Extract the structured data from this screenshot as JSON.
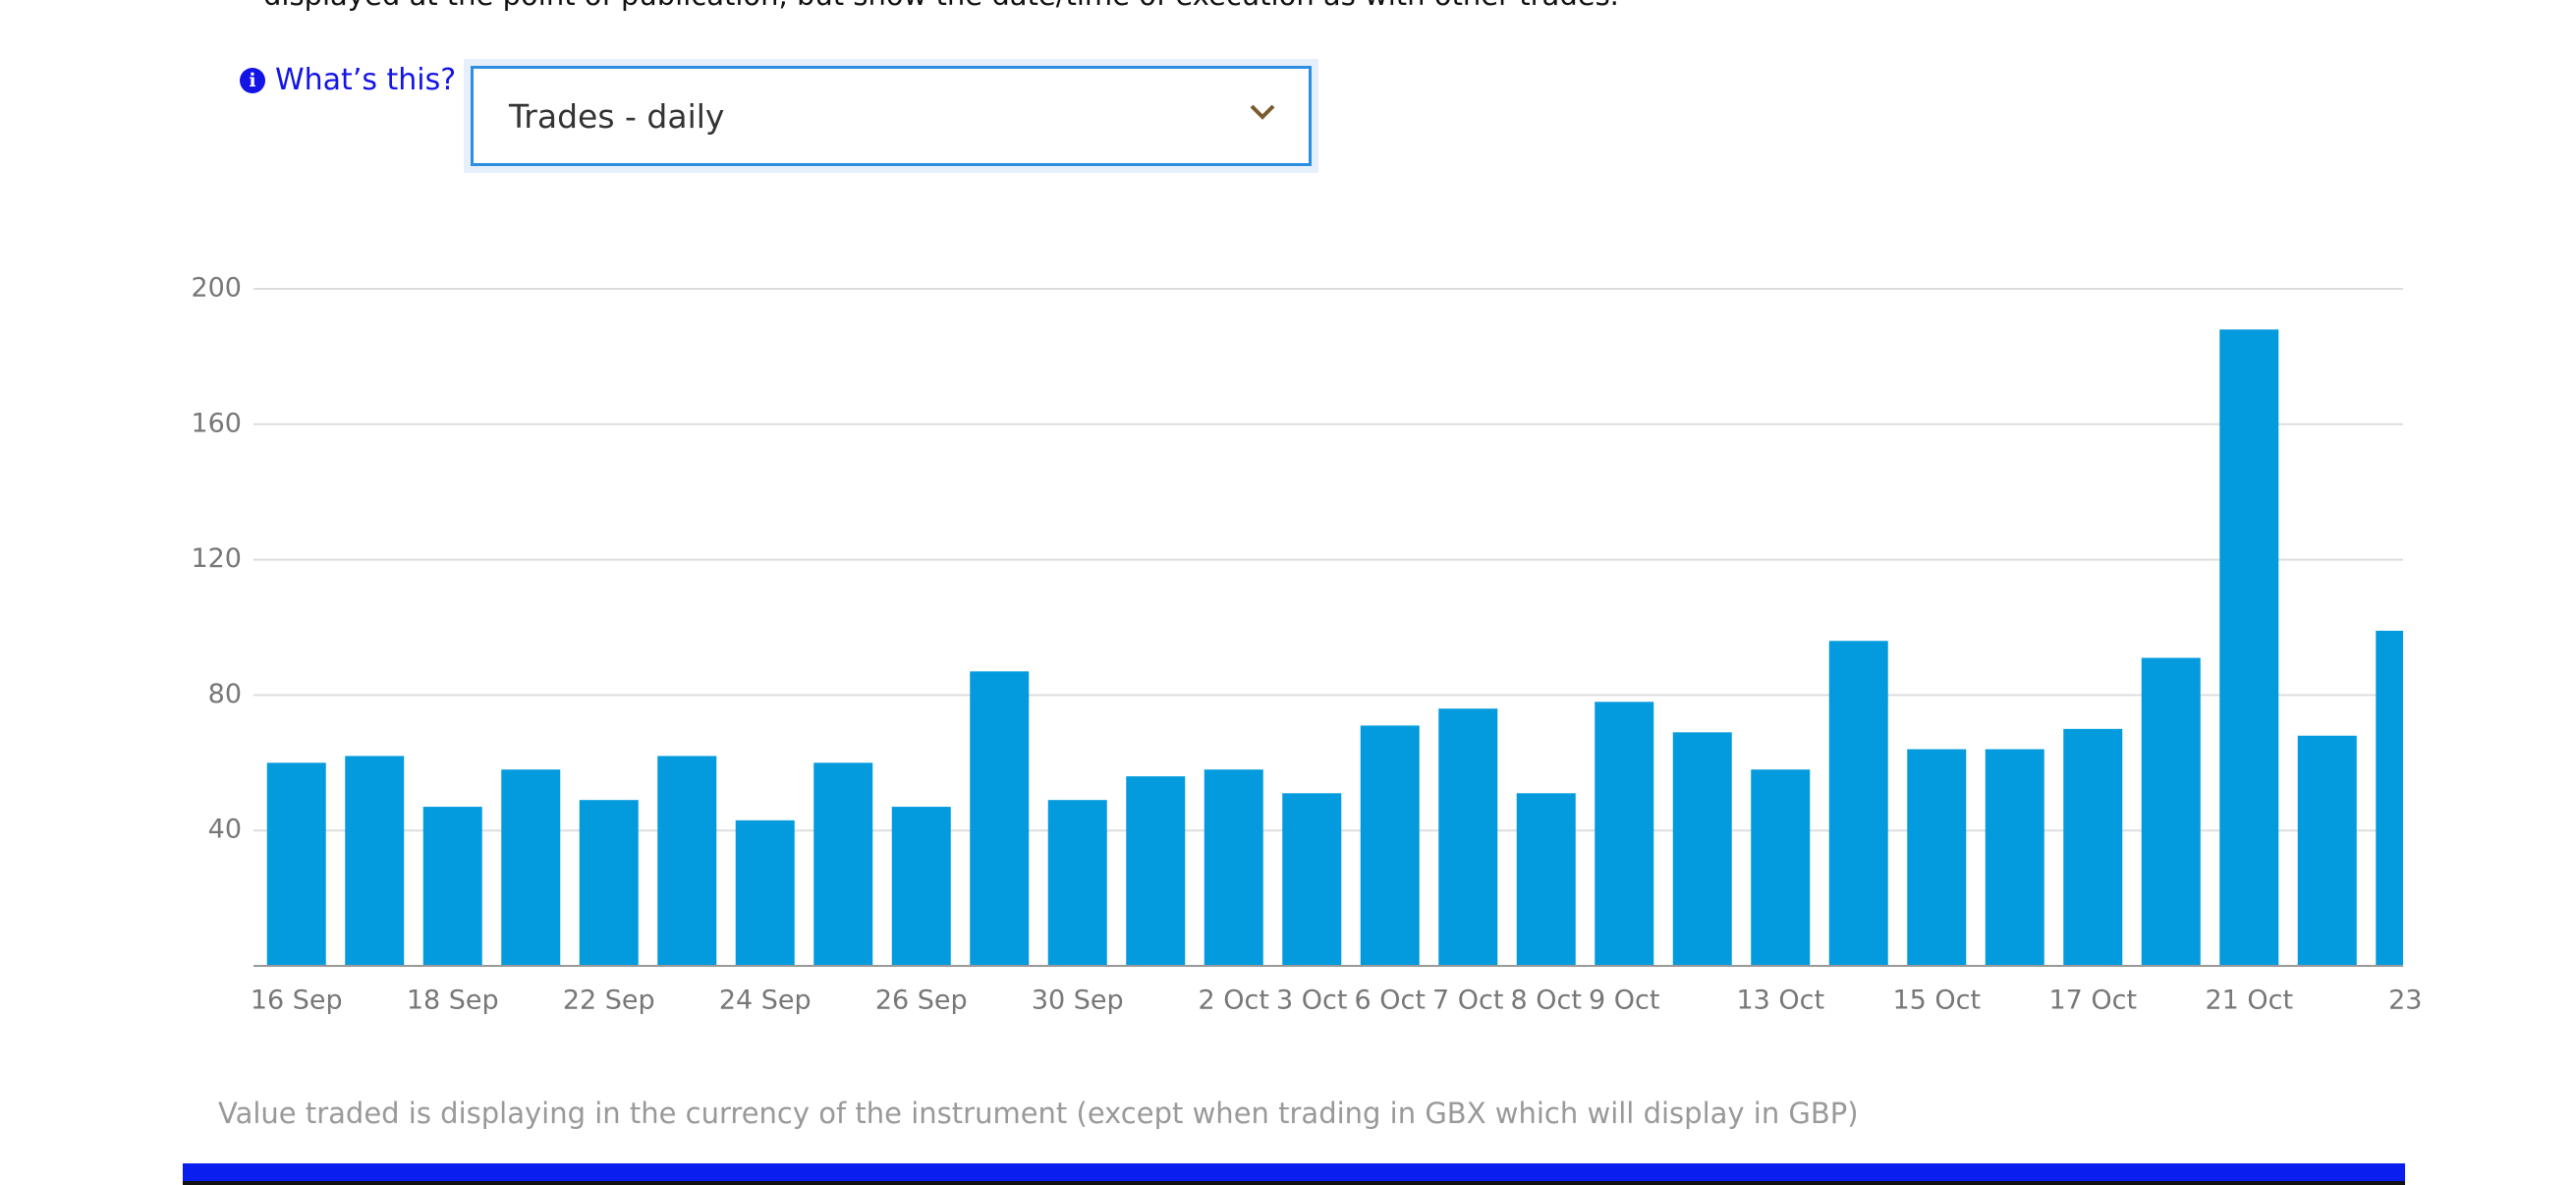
{
  "intro_text": "displayed at the point of publication, but show the date/time of execution as with other trades.",
  "help_link": "What’s this?",
  "dropdown": {
    "selected": "Trades - daily"
  },
  "chart_data": {
    "type": "bar",
    "categories": [
      "16 Sep",
      null,
      "18 Sep",
      null,
      "22 Sep",
      null,
      "24 Sep",
      null,
      "26 Sep",
      null,
      "30 Sep",
      null,
      "2 Oct",
      "3 Oct",
      "6 Oct",
      "7 Oct",
      "8 Oct",
      "9 Oct",
      null,
      "13 Oct",
      null,
      "15 Oct",
      null,
      "17 Oct",
      null,
      "21 Oct",
      null,
      "23"
    ],
    "values": [
      60,
      62,
      47,
      58,
      49,
      62,
      43,
      60,
      47,
      87,
      49,
      56,
      58,
      51,
      71,
      76,
      51,
      78,
      69,
      58,
      96,
      64,
      64,
      70,
      91,
      188,
      68,
      99
    ],
    "color": "#039bdd",
    "ylim": [
      0,
      200
    ],
    "yticks": [
      40,
      80,
      120,
      160,
      200
    ],
    "grid": true
  },
  "footnote": "Value traded is displaying in the currency of the instrument (except when trading in GBX which will display in GBP)"
}
